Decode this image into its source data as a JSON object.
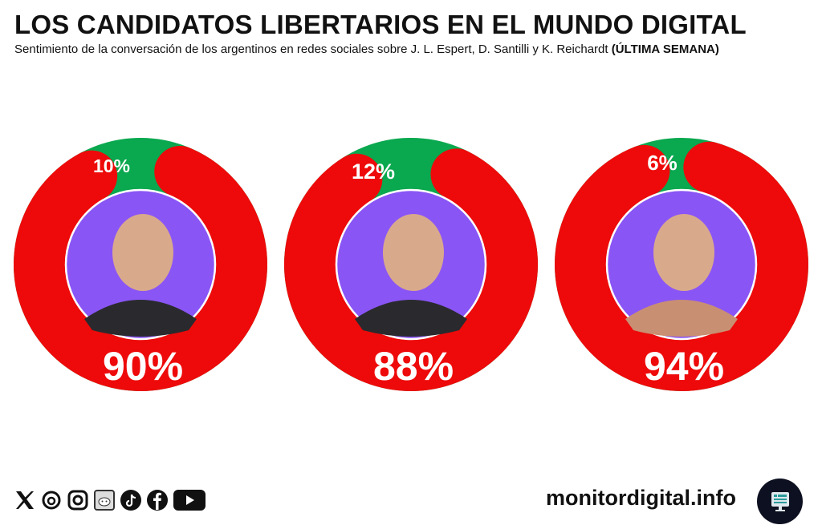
{
  "title": "LOS CANDIDATOS LIBERTARIOS EN EL MUNDO DIGITAL",
  "subtitle": "Sentimiento de la conversación de los argentinos en redes sociales sobre J. L. Espert, D. Santilli y K. Reichardt",
  "subtitle_bold": "(ÚLTIMA SEMANA)",
  "colors": {
    "negative": "#ee0a0a",
    "positive": "#0aa84f",
    "photo_bg": "#8a55f5"
  },
  "chart_data": {
    "type": "pie",
    "subtype": "donut",
    "title": "LOS CANDIDATOS LIBERTARIOS EN EL MUNDO DIGITAL",
    "categories": [
      "J. L. Espert",
      "D. Santilli",
      "K. Reichardt"
    ],
    "series": [
      {
        "color": "#0aa84f",
        "values": [
          10,
          12,
          6
        ]
      },
      {
        "color": "#ee0a0a",
        "values": [
          90,
          88,
          94
        ]
      }
    ],
    "labels_positive": [
      "10%",
      "12%",
      "6%"
    ],
    "labels_negative": [
      "90%",
      "88%",
      "94%"
    ]
  },
  "footer": {
    "site": "monitordigital.info",
    "social_icons": [
      "x-icon",
      "threads-icon",
      "instagram-icon",
      "reddit-icon",
      "tiktok-icon",
      "facebook-icon",
      "youtube-icon"
    ]
  }
}
